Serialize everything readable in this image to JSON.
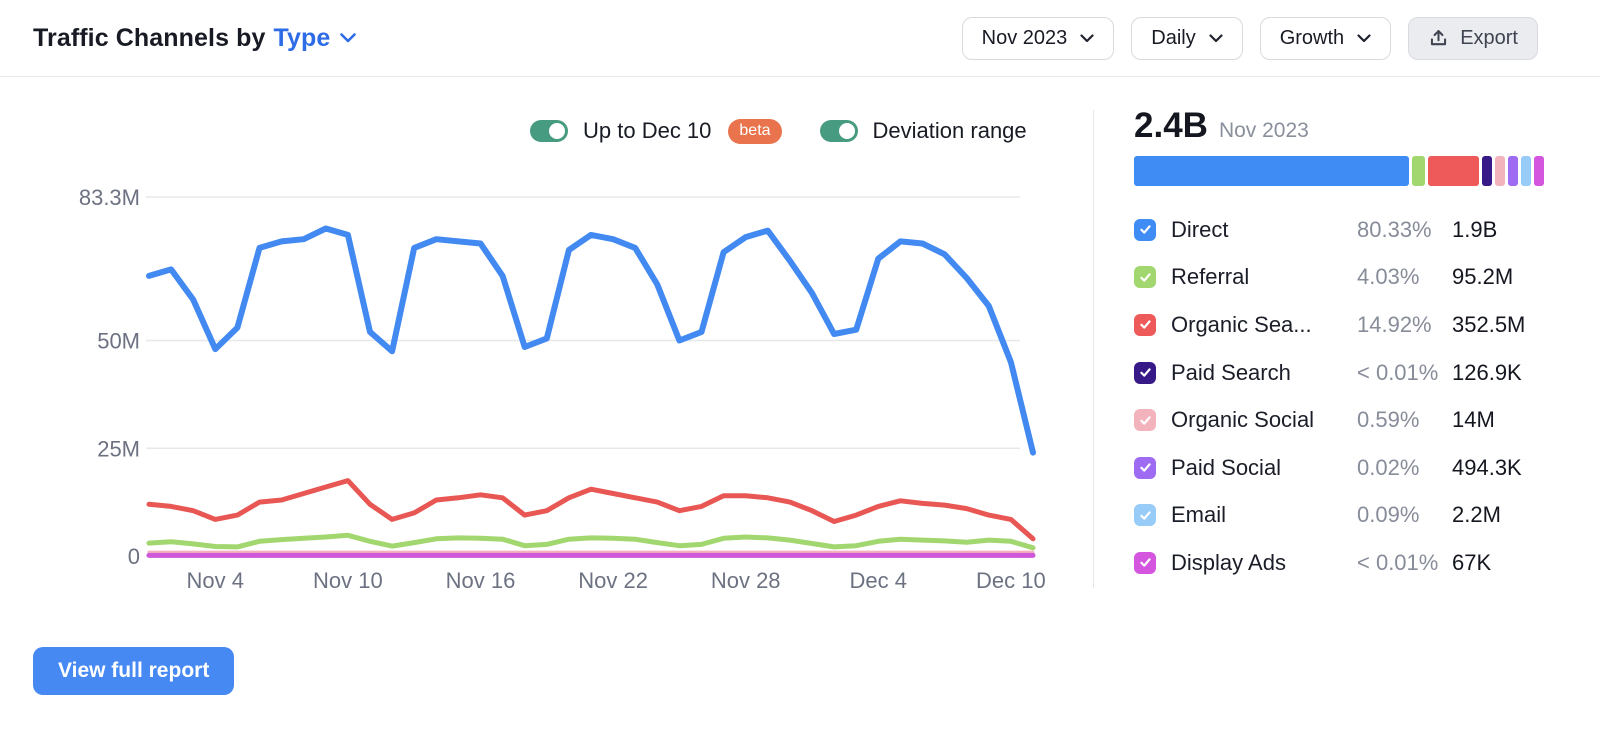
{
  "ui": {
    "accent_blue": "#2e6be6",
    "toggle_on_color": "#479b80",
    "beta_badge_color": "#e8734c",
    "view_button_color": "#4689f3",
    "grid_color": "#e7e8ec",
    "axis_text_color": "#6d7282"
  },
  "header": {
    "title_prefix": "Traffic Channels by",
    "title_link": "Type",
    "period_dropdown": "Nov 2023",
    "granularity_dropdown": "Daily",
    "metric_dropdown": "Growth",
    "export_label": "Export"
  },
  "toggles": {
    "up_to": {
      "label": "Up to Dec 10",
      "badge": "beta",
      "state": "on"
    },
    "deviation": {
      "label": "Deviation range",
      "state": "on"
    }
  },
  "summary": {
    "total": "2.4B",
    "period": "Nov 2023"
  },
  "legend": {
    "rows": [
      {
        "channel": "Direct",
        "label": "Direct",
        "percent": "80.33%",
        "percent_num": 80.33,
        "value": "1.9B",
        "color": "#3e8cf4"
      },
      {
        "channel": "Referral",
        "label": "Referral",
        "percent": "4.03%",
        "percent_num": 4.03,
        "value": "95.2M",
        "color": "#a2d66e"
      },
      {
        "channel": "Organic Search",
        "label": "Organic Sea...",
        "percent": "14.92%",
        "percent_num": 14.92,
        "value": "352.5M",
        "color": "#ee5a5a"
      },
      {
        "channel": "Paid Search",
        "label": "Paid Search",
        "percent": "< 0.01%",
        "percent_num": 0.005,
        "value": "126.9K",
        "color": "#371a87"
      },
      {
        "channel": "Organic Social",
        "label": "Organic Social",
        "percent": "0.59%",
        "percent_num": 0.59,
        "value": "14M",
        "color": "#f3b3bc"
      },
      {
        "channel": "Paid Social",
        "label": "Paid Social",
        "percent": "0.02%",
        "percent_num": 0.02,
        "value": "494.3K",
        "color": "#9e6cf3"
      },
      {
        "channel": "Email",
        "label": "Email",
        "percent": "0.09%",
        "percent_num": 0.09,
        "value": "2.2M",
        "color": "#97cbf8"
      },
      {
        "channel": "Display Ads",
        "label": "Display Ads",
        "percent": "< 0.01%",
        "percent_num": 0.005,
        "value": "67K",
        "color": "#d455de"
      }
    ]
  },
  "footer": {
    "view_full_report": "View full report"
  },
  "chart_data": {
    "type": "line",
    "title": "Traffic Channels by Type — daily visits",
    "values_unit": "millions of visits",
    "grid": true,
    "legend_position": "right-panel",
    "axes": {
      "ylim": [
        0,
        83.3
      ],
      "y_ticks": [
        {
          "label": "83.3M",
          "value": 83.3
        },
        {
          "label": "50M",
          "value": 50
        },
        {
          "label": "25M",
          "value": 25
        },
        {
          "label": "0",
          "value": 0
        }
      ],
      "x_tick_labels": [
        "Nov 4",
        "Nov 10",
        "Nov 16",
        "Nov 22",
        "Nov 28",
        "Dec 4",
        "Dec 10"
      ]
    },
    "x": [
      "Nov 1",
      "Nov 2",
      "Nov 3",
      "Nov 4",
      "Nov 5",
      "Nov 6",
      "Nov 7",
      "Nov 8",
      "Nov 9",
      "Nov 10",
      "Nov 11",
      "Nov 12",
      "Nov 13",
      "Nov 14",
      "Nov 15",
      "Nov 16",
      "Nov 17",
      "Nov 18",
      "Nov 19",
      "Nov 20",
      "Nov 21",
      "Nov 22",
      "Nov 23",
      "Nov 24",
      "Nov 25",
      "Nov 26",
      "Nov 27",
      "Nov 28",
      "Nov 29",
      "Nov 30",
      "Dec 1",
      "Dec 2",
      "Dec 3",
      "Dec 4",
      "Dec 5",
      "Dec 6",
      "Dec 7",
      "Dec 8",
      "Dec 9",
      "Dec 10",
      "Dec 11"
    ],
    "series": [
      {
        "name": "Paid Search",
        "color": "#371a87",
        "line_width": 2,
        "values": [
          0.005,
          0.005,
          0.005,
          0.005,
          0.005,
          0.005,
          0.005,
          0.005,
          0.005,
          0.005,
          0.005,
          0.005,
          0.005,
          0.005,
          0.005,
          0.005,
          0.005,
          0.005,
          0.005,
          0.005,
          0.005,
          0.005,
          0.005,
          0.005,
          0.005,
          0.005,
          0.005,
          0.005,
          0.005,
          0.005,
          0.005,
          0.005,
          0.005,
          0.005,
          0.005,
          0.005,
          0.005,
          0.005,
          0.005,
          0.005,
          0.005
        ]
      },
      {
        "name": "Paid Social",
        "color": "#9e6cf3",
        "line_width": 2,
        "values": [
          0.02,
          0.02,
          0.02,
          0.02,
          0.02,
          0.02,
          0.02,
          0.02,
          0.02,
          0.02,
          0.02,
          0.02,
          0.02,
          0.02,
          0.02,
          0.02,
          0.02,
          0.02,
          0.02,
          0.02,
          0.02,
          0.02,
          0.02,
          0.02,
          0.02,
          0.02,
          0.02,
          0.02,
          0.02,
          0.02,
          0.02,
          0.02,
          0.02,
          0.02,
          0.02,
          0.02,
          0.02,
          0.02,
          0.02,
          0.02,
          0.02
        ]
      },
      {
        "name": "Email",
        "color": "#97cbf8",
        "line_width": 2,
        "values": [
          0.07,
          0.07,
          0.07,
          0.07,
          0.07,
          0.07,
          0.07,
          0.07,
          0.07,
          0.07,
          0.07,
          0.07,
          0.07,
          0.07,
          0.07,
          0.07,
          0.07,
          0.07,
          0.07,
          0.07,
          0.07,
          0.07,
          0.07,
          0.07,
          0.07,
          0.07,
          0.07,
          0.07,
          0.07,
          0.07,
          0.07,
          0.07,
          0.07,
          0.07,
          0.07,
          0.07,
          0.07,
          0.07,
          0.07,
          0.07,
          0.07
        ]
      },
      {
        "name": "Organic Social",
        "color": "#f3b3bc",
        "line_width": 3,
        "values": [
          0.9,
          0.9,
          0.9,
          0.9,
          0.9,
          0.9,
          0.9,
          0.9,
          0.9,
          0.9,
          0.9,
          0.9,
          0.9,
          0.9,
          0.9,
          0.9,
          0.9,
          0.9,
          0.9,
          0.9,
          0.9,
          0.9,
          0.9,
          0.9,
          0.9,
          0.9,
          0.9,
          0.9,
          0.9,
          0.9,
          0.9,
          0.9,
          0.9,
          0.9,
          0.9,
          0.9,
          0.9,
          0.9,
          0.9,
          0.9,
          0.9
        ]
      },
      {
        "name": "Display Ads",
        "color": "#cf58da",
        "line_width": 5,
        "values": [
          0.15,
          0.15,
          0.15,
          0.15,
          0.15,
          0.15,
          0.15,
          0.15,
          0.15,
          0.15,
          0.15,
          0.15,
          0.15,
          0.15,
          0.15,
          0.15,
          0.15,
          0.15,
          0.15,
          0.15,
          0.15,
          0.15,
          0.15,
          0.15,
          0.15,
          0.15,
          0.15,
          0.15,
          0.15,
          0.15,
          0.15,
          0.15,
          0.15,
          0.15,
          0.15,
          0.15,
          0.15,
          0.15,
          0.15,
          0.15,
          0.15
        ]
      },
      {
        "name": "Referral",
        "color": "#a2d66e",
        "line_width": 5,
        "values": [
          3,
          3.3,
          2.8,
          2.2,
          2.1,
          3.4,
          3.8,
          4.1,
          4.4,
          4.8,
          3.4,
          2.3,
          3.1,
          4,
          4.2,
          4.1,
          3.9,
          2.4,
          2.7,
          3.9,
          4.2,
          4.1,
          3.9,
          3.1,
          2.4,
          2.7,
          4.1,
          4.4,
          4.2,
          3.7,
          2.9,
          2.1,
          2.4,
          3.4,
          3.9,
          3.7,
          3.5,
          3.2,
          3.7,
          3.4,
          1.9
        ]
      },
      {
        "name": "Organic Search",
        "color": "#e85753",
        "line_width": 5,
        "values": [
          12,
          11.5,
          10.5,
          8.5,
          9.5,
          12.5,
          13,
          14.5,
          16,
          17.5,
          12,
          8.5,
          10,
          13,
          13.5,
          14.2,
          13.5,
          9.5,
          10.5,
          13.5,
          15.5,
          14.5,
          13.5,
          12.5,
          10.5,
          11.5,
          14,
          14,
          13.5,
          12.5,
          10.5,
          8,
          9.5,
          11.5,
          12.8,
          12.2,
          11.8,
          11,
          9.5,
          8.5,
          4
        ]
      },
      {
        "name": "Direct",
        "color": "#4289f2",
        "line_width": 6,
        "values": [
          65,
          66.5,
          59.5,
          48,
          53,
          71.5,
          73,
          73.5,
          76,
          74.5,
          52,
          47.5,
          71.5,
          73.5,
          73,
          72.5,
          65,
          48.5,
          50.5,
          71,
          74.5,
          73.5,
          71.5,
          63,
          50,
          52,
          70.5,
          74,
          75.5,
          68.5,
          61,
          51.5,
          52.5,
          69,
          73,
          72.5,
          70,
          64.5,
          58,
          45,
          24
        ]
      }
    ]
  }
}
